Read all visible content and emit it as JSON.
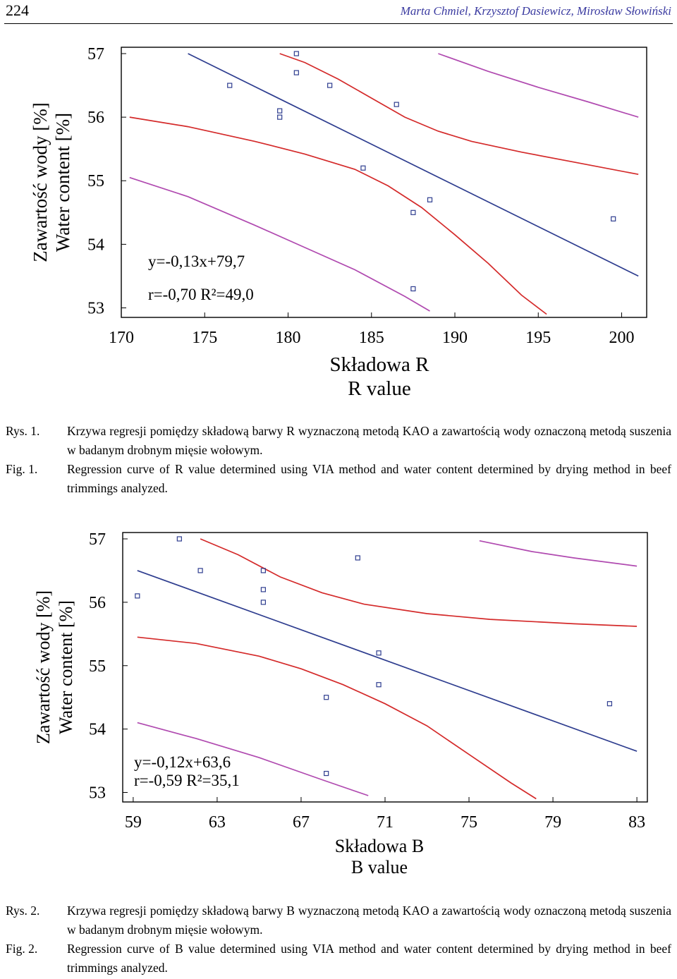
{
  "header": {
    "page_number": "224",
    "authors": "Marta Chmiel, Krzysztof Dasiewicz, Mirosław Słowiński"
  },
  "chart_data": [
    {
      "type": "scatter",
      "xlabel": [
        "Składowa R",
        "R value"
      ],
      "ylabel": [
        "Zawartość wody [%]",
        "Water content [%]"
      ],
      "xlim": [
        170,
        201.5
      ],
      "ylim": [
        52.85,
        57.1
      ],
      "xticks": [
        170,
        175,
        180,
        185,
        190,
        195,
        200
      ],
      "yticks": [
        53,
        54,
        55,
        56,
        57
      ],
      "grid": false,
      "annotations": [
        "y=-0,13x+79,7",
        "r=-0,70  R²=49,0"
      ],
      "points": [
        {
          "x": 176.5,
          "y": 56.5
        },
        {
          "x": 179.5,
          "y": 56.1
        },
        {
          "x": 179.5,
          "y": 56.0
        },
        {
          "x": 180.5,
          "y": 57.0
        },
        {
          "x": 180.5,
          "y": 56.7
        },
        {
          "x": 182.5,
          "y": 56.5
        },
        {
          "x": 184.5,
          "y": 55.2
        },
        {
          "x": 186.5,
          "y": 56.2
        },
        {
          "x": 187.5,
          "y": 54.5
        },
        {
          "x": 188.5,
          "y": 54.7
        },
        {
          "x": 187.5,
          "y": 53.3
        },
        {
          "x": 199.5,
          "y": 54.4
        }
      ],
      "series": [
        {
          "role": "fit",
          "color": "#2e3d8f",
          "x": [
            174,
            201
          ],
          "y": [
            57.0,
            53.5
          ]
        },
        {
          "role": "confidence-lower",
          "color": "#d42a2a",
          "x": [
            170.5,
            174,
            178,
            181,
            184,
            186,
            188,
            190,
            192,
            194,
            195.5
          ],
          "y": [
            56.0,
            55.85,
            55.62,
            55.42,
            55.18,
            54.92,
            54.58,
            54.15,
            53.7,
            53.2,
            52.9
          ]
        },
        {
          "role": "confidence-upper",
          "color": "#d42a2a",
          "x": [
            179.5,
            181,
            183,
            185,
            187,
            189,
            191,
            194,
            197,
            201
          ],
          "y": [
            57.0,
            56.86,
            56.6,
            56.3,
            56.0,
            55.78,
            55.62,
            55.45,
            55.3,
            55.1
          ]
        },
        {
          "role": "prediction-lower",
          "color": "#b04ab0",
          "x": [
            170.5,
            174,
            178,
            181,
            184,
            187,
            188.5
          ],
          "y": [
            55.05,
            54.75,
            54.3,
            53.95,
            53.6,
            53.18,
            52.95
          ]
        },
        {
          "role": "prediction-upper",
          "color": "#b04ab0",
          "x": [
            189,
            192,
            195,
            198,
            201
          ],
          "y": [
            57.0,
            56.72,
            56.47,
            56.24,
            56.0
          ]
        }
      ]
    },
    {
      "type": "scatter",
      "xlabel": [
        "Składowa B",
        "B value"
      ],
      "ylabel": [
        "Zawartość wody [%]",
        "Water content [%]"
      ],
      "xlim": [
        58.5,
        83.5
      ],
      "ylim": [
        52.85,
        57.1
      ],
      "xticks": [
        59,
        63,
        67,
        71,
        75,
        79,
        83
      ],
      "yticks": [
        53,
        54,
        55,
        56,
        57
      ],
      "grid": false,
      "annotations": [
        "y=-0,12x+63,6",
        "r=-0,59  R²=35,1"
      ],
      "points": [
        {
          "x": 59.2,
          "y": 56.1
        },
        {
          "x": 61.2,
          "y": 57.0
        },
        {
          "x": 62.2,
          "y": 56.5
        },
        {
          "x": 65.2,
          "y": 56.5
        },
        {
          "x": 65.2,
          "y": 56.2
        },
        {
          "x": 65.2,
          "y": 56.0
        },
        {
          "x": 69.7,
          "y": 56.7
        },
        {
          "x": 70.7,
          "y": 55.2
        },
        {
          "x": 70.7,
          "y": 54.7
        },
        {
          "x": 68.2,
          "y": 54.5
        },
        {
          "x": 68.2,
          "y": 53.3
        },
        {
          "x": 81.7,
          "y": 54.4
        }
      ],
      "series": [
        {
          "role": "fit",
          "color": "#2e3d8f",
          "x": [
            59.2,
            83
          ],
          "y": [
            56.5,
            53.65
          ]
        },
        {
          "role": "confidence-lower",
          "color": "#d42a2a",
          "x": [
            59.2,
            62,
            65,
            67,
            69,
            71,
            73,
            75,
            77,
            78.2
          ],
          "y": [
            55.45,
            55.35,
            55.15,
            54.95,
            54.7,
            54.4,
            54.05,
            53.6,
            53.15,
            52.9
          ]
        },
        {
          "role": "confidence-upper",
          "color": "#d42a2a",
          "x": [
            62.2,
            64,
            66,
            68,
            70,
            73,
            76,
            80,
            83
          ],
          "y": [
            57.0,
            56.75,
            56.4,
            56.15,
            55.97,
            55.82,
            55.73,
            55.66,
            55.62
          ]
        },
        {
          "role": "prediction-lower",
          "color": "#b04ab0",
          "x": [
            59.2,
            62,
            65,
            68,
            70.2
          ],
          "y": [
            54.1,
            53.85,
            53.55,
            53.2,
            52.95
          ]
        },
        {
          "role": "prediction-upper",
          "color": "#b04ab0",
          "x": [
            75.5,
            78,
            80,
            83
          ],
          "y": [
            56.97,
            56.8,
            56.7,
            56.57
          ]
        }
      ]
    }
  ],
  "captions": [
    {
      "rys_label": "Rys. 1.",
      "rys_text": "Krzywa regresji pomiędzy składową barwy R wyznaczoną metodą KAO a zawartością wody oznaczoną metodą suszenia w badanym drobnym mięsie wołowym.",
      "fig_label": "Fig. 1.",
      "fig_text": "Regression curve of R value determined using VIA method and water content determined by drying method in beef trimmings analyzed."
    },
    {
      "rys_label": "Rys. 2.",
      "rys_text": "Krzywa regresji pomiędzy składową barwy B wyznaczoną metodą KAO a zawartością wody oznaczoną metodą suszenia w badanym drobnym mięsie wołowym.",
      "fig_label": "Fig. 2.",
      "fig_text": "Regression curve of B value determined using VIA method and water content determined by drying method in beef trimmings analyzed."
    }
  ]
}
